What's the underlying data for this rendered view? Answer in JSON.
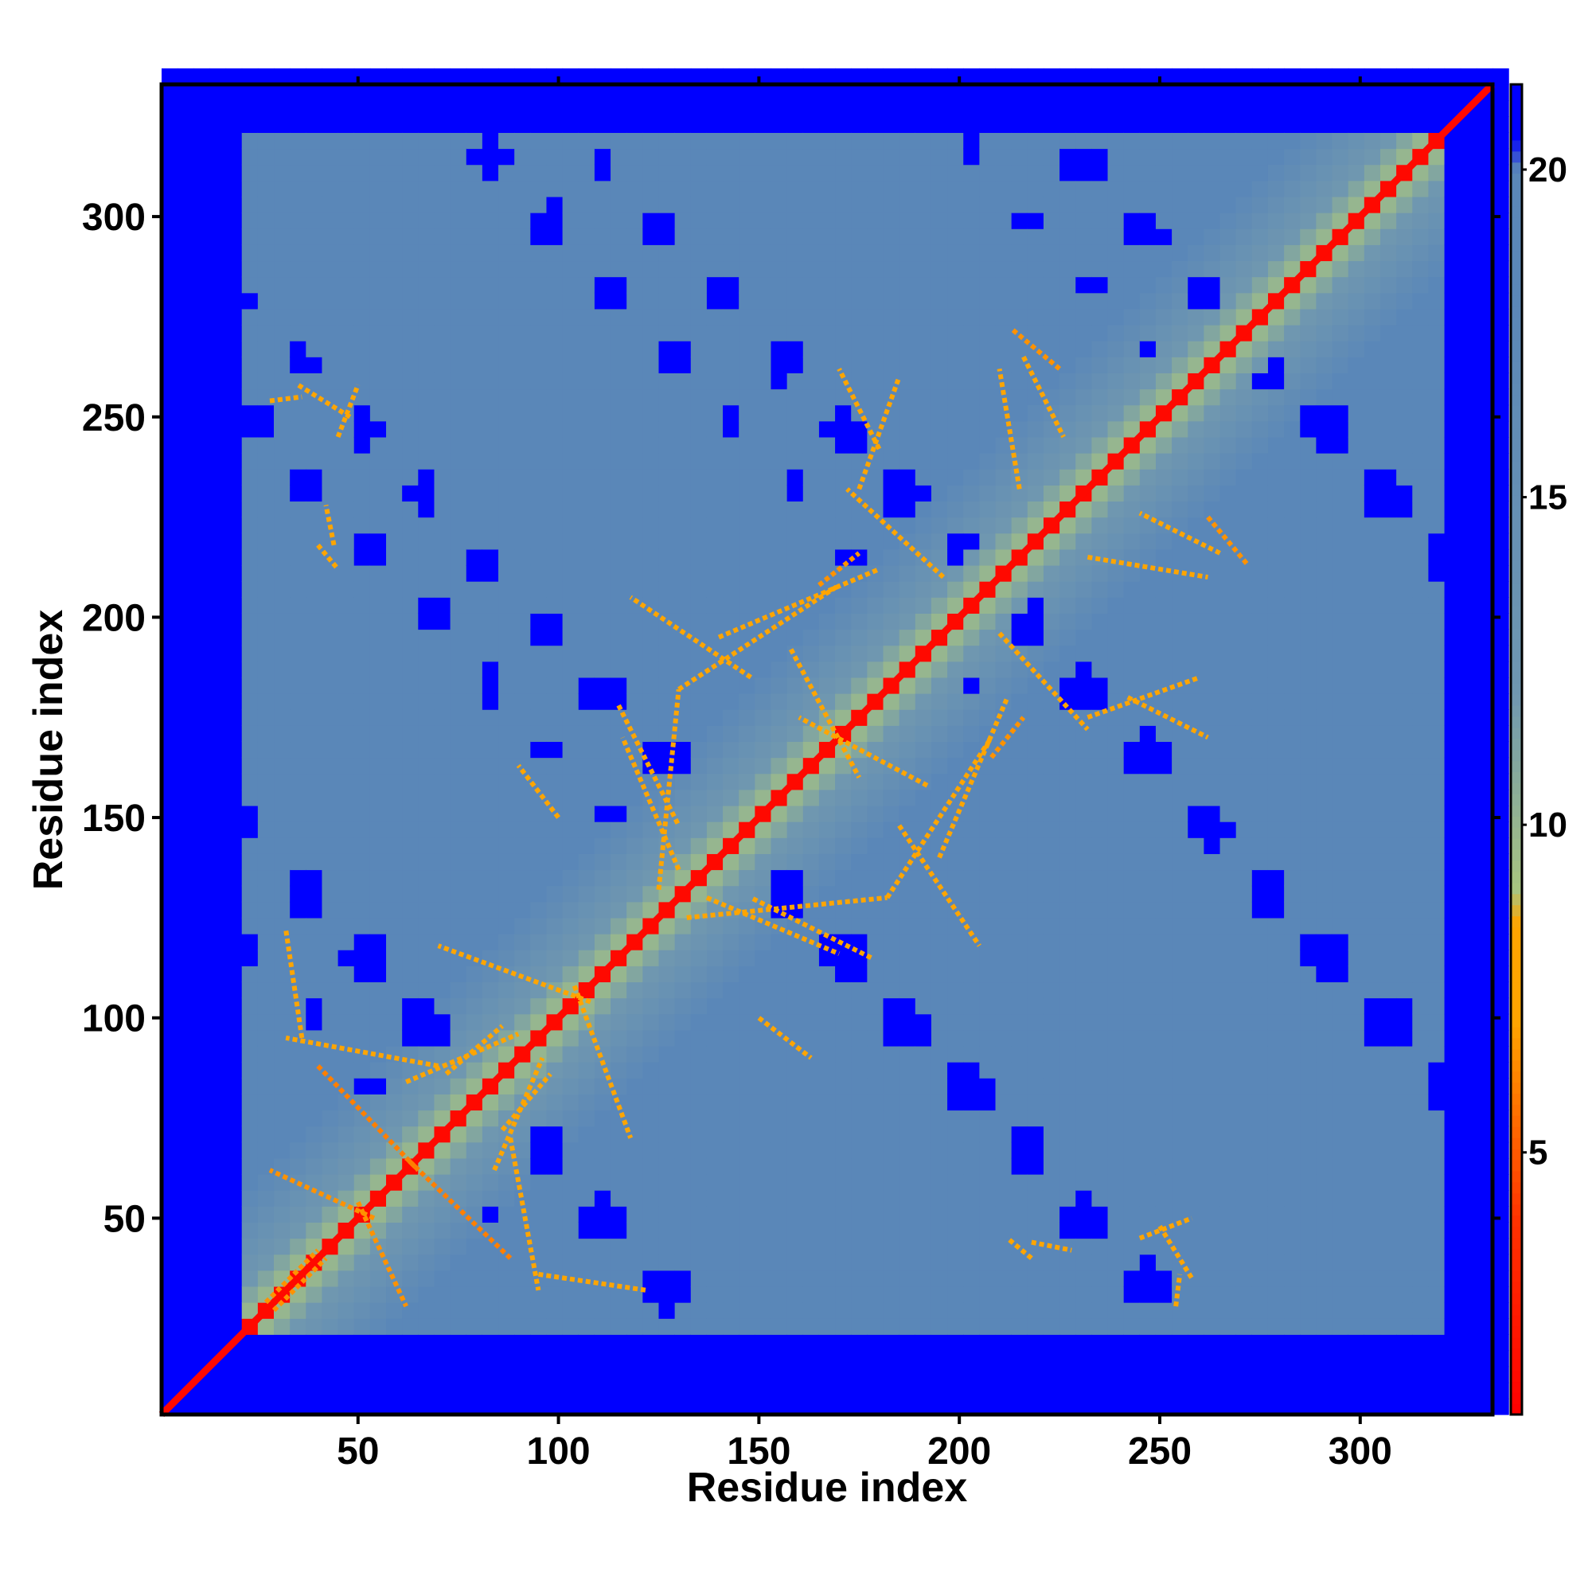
{
  "chart_data": {
    "type": "heatmap",
    "title": "",
    "xlabel": "Residue index",
    "ylabel": "Residue index",
    "n_residues": 333,
    "xlim": [
      1,
      333
    ],
    "ylim": [
      1,
      333
    ],
    "x_ticks": [
      50,
      100,
      150,
      200,
      250,
      300
    ],
    "y_ticks": [
      50,
      100,
      150,
      200,
      250,
      300
    ],
    "x_tick_labels": [
      "50",
      "100",
      "150",
      "200",
      "250",
      "300"
    ],
    "y_tick_labels": [
      "50",
      "100",
      "150",
      "200",
      "250",
      "300"
    ],
    "colorbar": {
      "range": [
        1,
        21.3
      ],
      "ticks": [
        5,
        10,
        15,
        20
      ],
      "tick_labels": [
        "5",
        "10",
        "15",
        "20"
      ],
      "stops": [
        {
          "value": 1,
          "color": "#ff0000"
        },
        {
          "value": 4,
          "color": "#ff3300"
        },
        {
          "value": 7,
          "color": "#ffa500"
        },
        {
          "value": 8.5,
          "color": "#ffa500"
        },
        {
          "value": 9,
          "color": "#a9c57f"
        },
        {
          "value": 12,
          "color": "#6f97b0"
        },
        {
          "value": 18,
          "color": "#5a87b8"
        },
        {
          "value": 20,
          "color": "#5a87b8"
        },
        {
          "value": 20.5,
          "color": "#0000ff"
        },
        {
          "value": 21.3,
          "color": "#0000ff"
        }
      ]
    },
    "grid": false,
    "legend": "colorbar-right",
    "description_values": {
      "diagonal_distance": 1.5,
      "contact_threshold": 8,
      "background_far": 21,
      "protein_core_span": [
        22,
        320
      ]
    },
    "contact_segments": [
      {
        "x": [
          29,
          42
        ],
        "y": [
          27,
          40
        ],
        "value": 6.5
      },
      {
        "x": [
          40,
          65
        ],
        "y": [
          88,
          62
        ],
        "value": 6
      },
      {
        "x": [
          50,
          62
        ],
        "y": [
          54,
          28
        ],
        "value": 6.5
      },
      {
        "x": [
          62,
          90
        ],
        "y": [
          84,
          96
        ],
        "value": 7
      },
      {
        "x": [
          88,
          95
        ],
        "y": [
          70,
          32
        ],
        "value": 7
      },
      {
        "x": [
          95,
          122
        ],
        "y": [
          36,
          32
        ],
        "value": 7
      },
      {
        "x": [
          104,
          118
        ],
        "y": [
          108,
          70
        ],
        "value": 7
      },
      {
        "x": [
          115,
          130
        ],
        "y": [
          178,
          148
        ],
        "value": 7
      },
      {
        "x": [
          125,
          130
        ],
        "y": [
          132,
          182
        ],
        "value": 7
      },
      {
        "x": [
          130,
          170
        ],
        "y": [
          182,
          208
        ],
        "value": 7
      },
      {
        "x": [
          137,
          170
        ],
        "y": [
          130,
          116
        ],
        "value": 7
      },
      {
        "x": [
          150,
          163
        ],
        "y": [
          100,
          90
        ],
        "value": 7
      },
      {
        "x": [
          158,
          175
        ],
        "y": [
          192,
          160
        ],
        "value": 7
      },
      {
        "x": [
          165,
          175
        ],
        "y": [
          208,
          216
        ],
        "value": 6.5
      },
      {
        "x": [
          175,
          185
        ],
        "y": [
          232,
          260
        ],
        "value": 7
      },
      {
        "x": [
          185,
          205
        ],
        "y": [
          148,
          118
        ],
        "value": 7
      },
      {
        "x": [
          195,
          212
        ],
        "y": [
          140,
          180
        ],
        "value": 7
      },
      {
        "x": [
          210,
          232
        ],
        "y": [
          196,
          172
        ],
        "value": 7
      },
      {
        "x": [
          216,
          226
        ],
        "y": [
          265,
          245
        ],
        "value": 7
      },
      {
        "x": [
          232,
          262
        ],
        "y": [
          215,
          210
        ],
        "value": 7
      },
      {
        "x": [
          242,
          262
        ],
        "y": [
          180,
          170
        ],
        "value": 7
      },
      {
        "x": [
          250,
          258
        ],
        "y": [
          48,
          35
        ],
        "value": 7
      },
      {
        "x": [
          262,
          272
        ],
        "y": [
          225,
          213
        ],
        "value": 6.5
      },
      {
        "x": [
          28,
          36
        ],
        "y": [
          254,
          255
        ],
        "value": 7
      },
      {
        "x": [
          45,
          50
        ],
        "y": [
          245,
          258
        ],
        "value": 7
      },
      {
        "x": [
          40,
          45
        ],
        "y": [
          218,
          212
        ],
        "value": 7
      },
      {
        "x": [
          86,
          98
        ],
        "y": [
          72,
          86
        ],
        "value": 7
      },
      {
        "x": [
          218,
          228
        ],
        "y": [
          44,
          42
        ],
        "value": 7
      }
    ]
  }
}
